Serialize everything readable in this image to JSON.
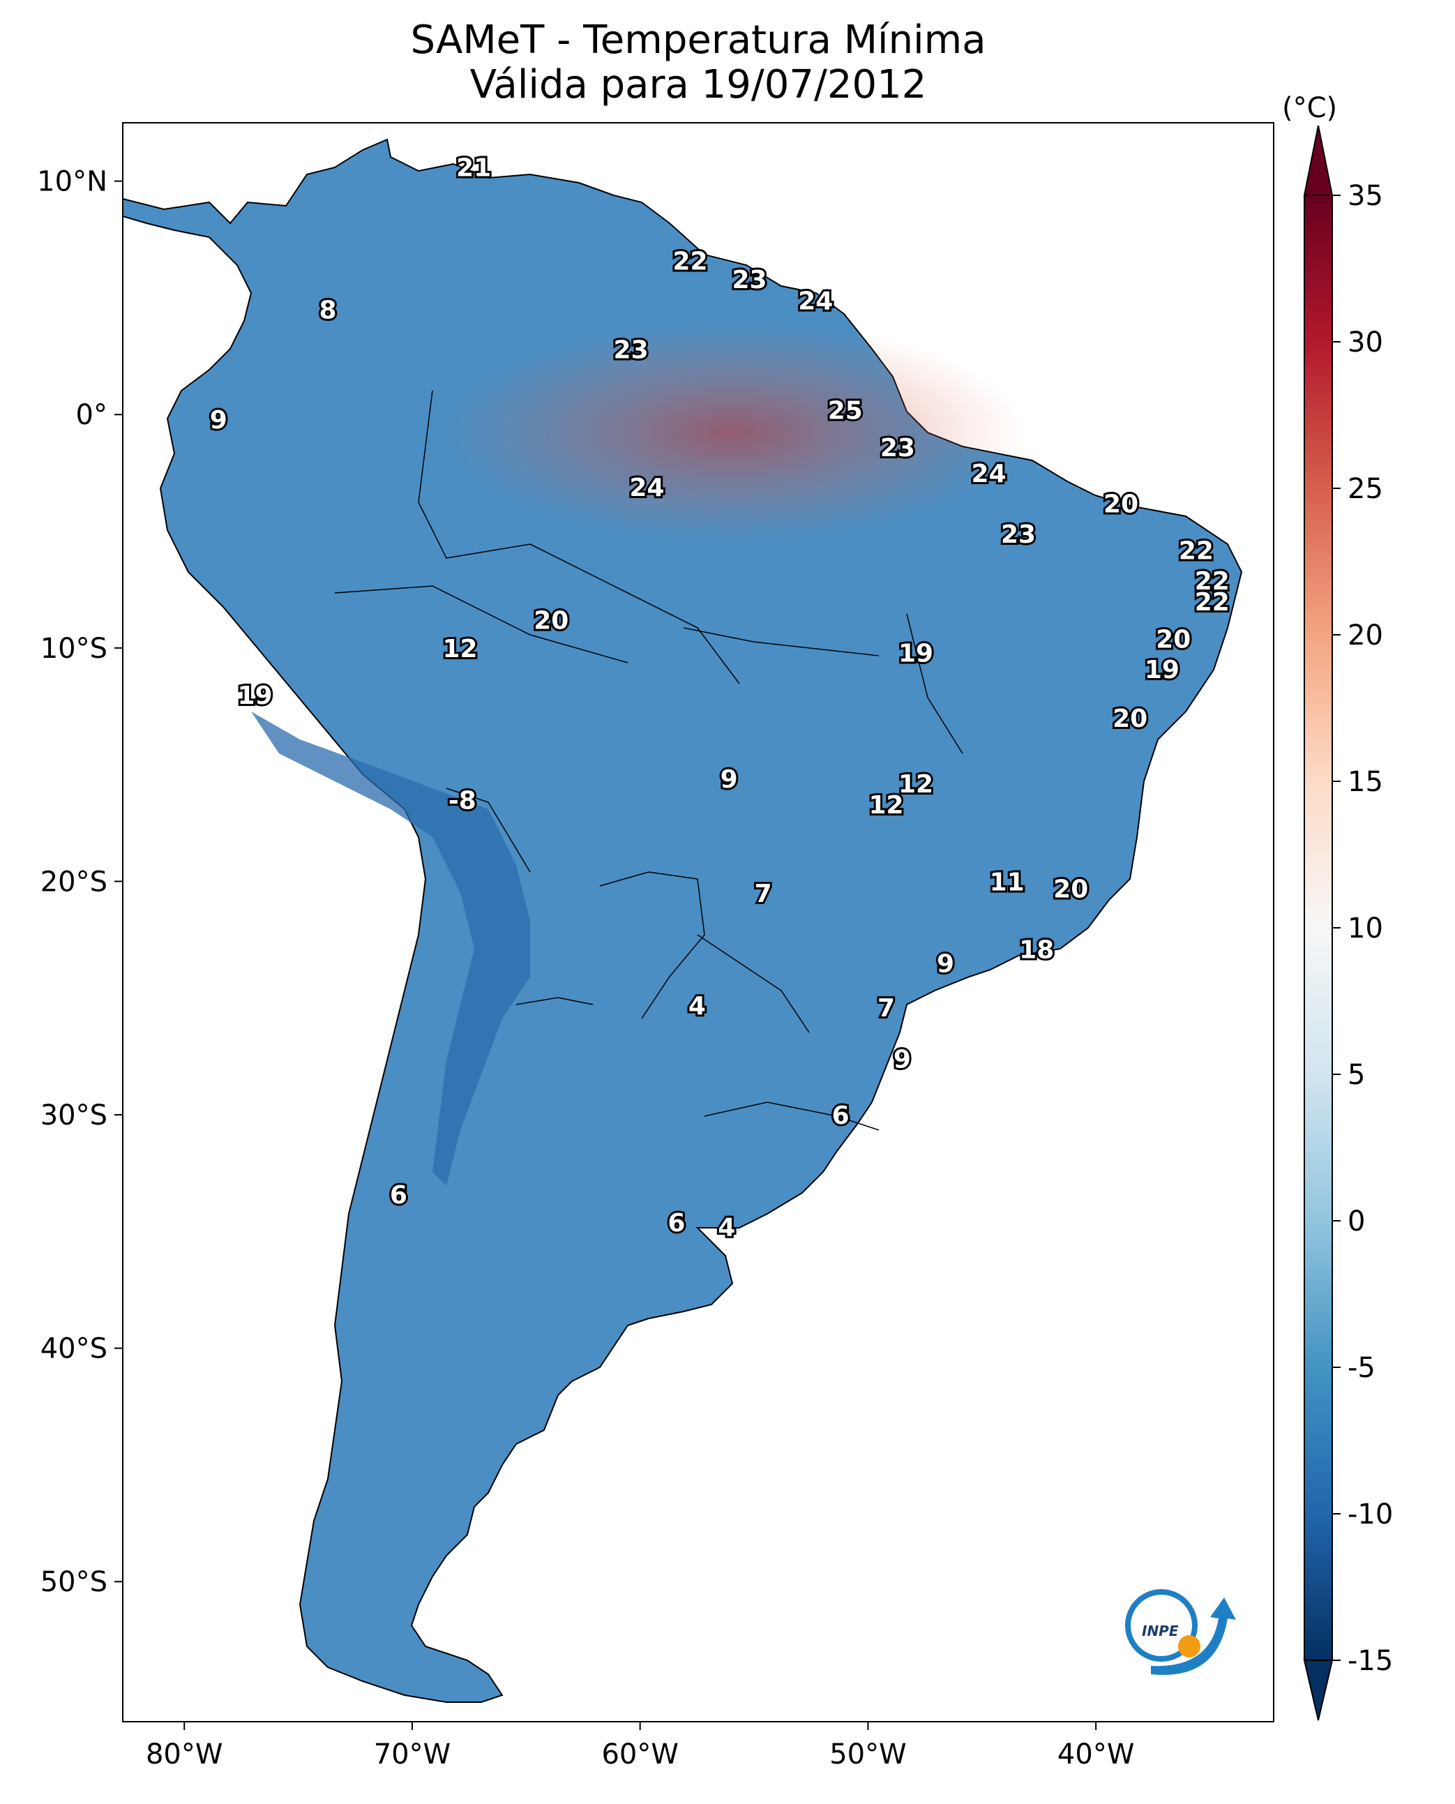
{
  "title": {
    "line1": "SAMeT - Temperatura Mínima",
    "line2": "Válida para 19/07/2012"
  },
  "map": {
    "lon_range": [
      -82.7,
      -32.2
    ],
    "lat_range": [
      -56.0,
      12.5
    ],
    "x_ticks": [
      {
        "lon": -80,
        "label": "80°W"
      },
      {
        "lon": -70,
        "label": "70°W"
      },
      {
        "lon": -60,
        "label": "60°W"
      },
      {
        "lon": -50,
        "label": "50°W"
      },
      {
        "lon": -40,
        "label": "40°W"
      }
    ],
    "y_ticks": [
      {
        "lat": 10,
        "label": "10°N"
      },
      {
        "lat": 0,
        "label": "0°"
      },
      {
        "lat": -10,
        "label": "10°S"
      },
      {
        "lat": -20,
        "label": "20°S"
      },
      {
        "lat": -30,
        "label": "30°S"
      },
      {
        "lat": -40,
        "label": "40°S"
      },
      {
        "lat": -50,
        "label": "50°S"
      }
    ],
    "station_labels": [
      {
        "lon": -67.3,
        "lat": 10.6,
        "value": "21"
      },
      {
        "lon": -57.8,
        "lat": 6.6,
        "value": "22"
      },
      {
        "lon": -55.2,
        "lat": 5.8,
        "value": "23"
      },
      {
        "lon": -52.3,
        "lat": 4.9,
        "value": "24"
      },
      {
        "lon": -73.7,
        "lat": 4.5,
        "value": "8"
      },
      {
        "lon": -60.4,
        "lat": 2.8,
        "value": "23"
      },
      {
        "lon": -51.0,
        "lat": 0.2,
        "value": "25"
      },
      {
        "lon": -78.5,
        "lat": -0.2,
        "value": "9"
      },
      {
        "lon": -48.7,
        "lat": -1.4,
        "value": "23"
      },
      {
        "lon": -44.7,
        "lat": -2.5,
        "value": "24"
      },
      {
        "lon": -59.7,
        "lat": -3.1,
        "value": "24"
      },
      {
        "lon": -38.9,
        "lat": -3.8,
        "value": "20"
      },
      {
        "lon": -43.4,
        "lat": -5.1,
        "value": "23"
      },
      {
        "lon": -35.6,
        "lat": -5.8,
        "value": "22"
      },
      {
        "lon": -34.9,
        "lat": -7.1,
        "value": "22"
      },
      {
        "lon": -34.9,
        "lat": -8.0,
        "value": "22"
      },
      {
        "lon": -63.9,
        "lat": -8.8,
        "value": "20"
      },
      {
        "lon": -36.6,
        "lat": -9.6,
        "value": "20"
      },
      {
        "lon": -67.9,
        "lat": -10.0,
        "value": "12"
      },
      {
        "lon": -47.9,
        "lat": -10.2,
        "value": "19"
      },
      {
        "lon": -37.1,
        "lat": -10.9,
        "value": "19"
      },
      {
        "lon": -76.9,
        "lat": -12.0,
        "value": "19"
      },
      {
        "lon": -38.5,
        "lat": -13.0,
        "value": "20"
      },
      {
        "lon": -56.1,
        "lat": -15.6,
        "value": "9"
      },
      {
        "lon": -47.9,
        "lat": -15.8,
        "value": "12"
      },
      {
        "lon": -49.2,
        "lat": -16.7,
        "value": "12"
      },
      {
        "lon": -67.8,
        "lat": -16.5,
        "value": "-8"
      },
      {
        "lon": -54.6,
        "lat": -20.5,
        "value": "7"
      },
      {
        "lon": -43.9,
        "lat": -20.0,
        "value": "11"
      },
      {
        "lon": -41.1,
        "lat": -20.3,
        "value": "20"
      },
      {
        "lon": -42.6,
        "lat": -22.9,
        "value": "18"
      },
      {
        "lon": -46.6,
        "lat": -23.5,
        "value": "9"
      },
      {
        "lon": -57.5,
        "lat": -25.3,
        "value": "4"
      },
      {
        "lon": -49.2,
        "lat": -25.4,
        "value": "7"
      },
      {
        "lon": -48.5,
        "lat": -27.6,
        "value": "9"
      },
      {
        "lon": -51.2,
        "lat": -30.0,
        "value": "6"
      },
      {
        "lon": -70.6,
        "lat": -33.4,
        "value": "6"
      },
      {
        "lon": -58.4,
        "lat": -34.6,
        "value": "6"
      },
      {
        "lon": -56.2,
        "lat": -34.8,
        "value": "4"
      }
    ]
  },
  "colorbar": {
    "unit": "(°C)",
    "min": -15,
    "max": 35,
    "ticks": [
      "35",
      "30",
      "25",
      "20",
      "15",
      "10",
      "5",
      "0",
      "-5",
      "-10",
      "-15"
    ],
    "colors": [
      "#053061",
      "#2166ac",
      "#4393c3",
      "#92c5de",
      "#d1e5f0",
      "#f7f7f7",
      "#fddbc7",
      "#f4a582",
      "#d6604d",
      "#b2182b",
      "#67001f"
    ]
  },
  "logo": {
    "text": "INPE"
  }
}
